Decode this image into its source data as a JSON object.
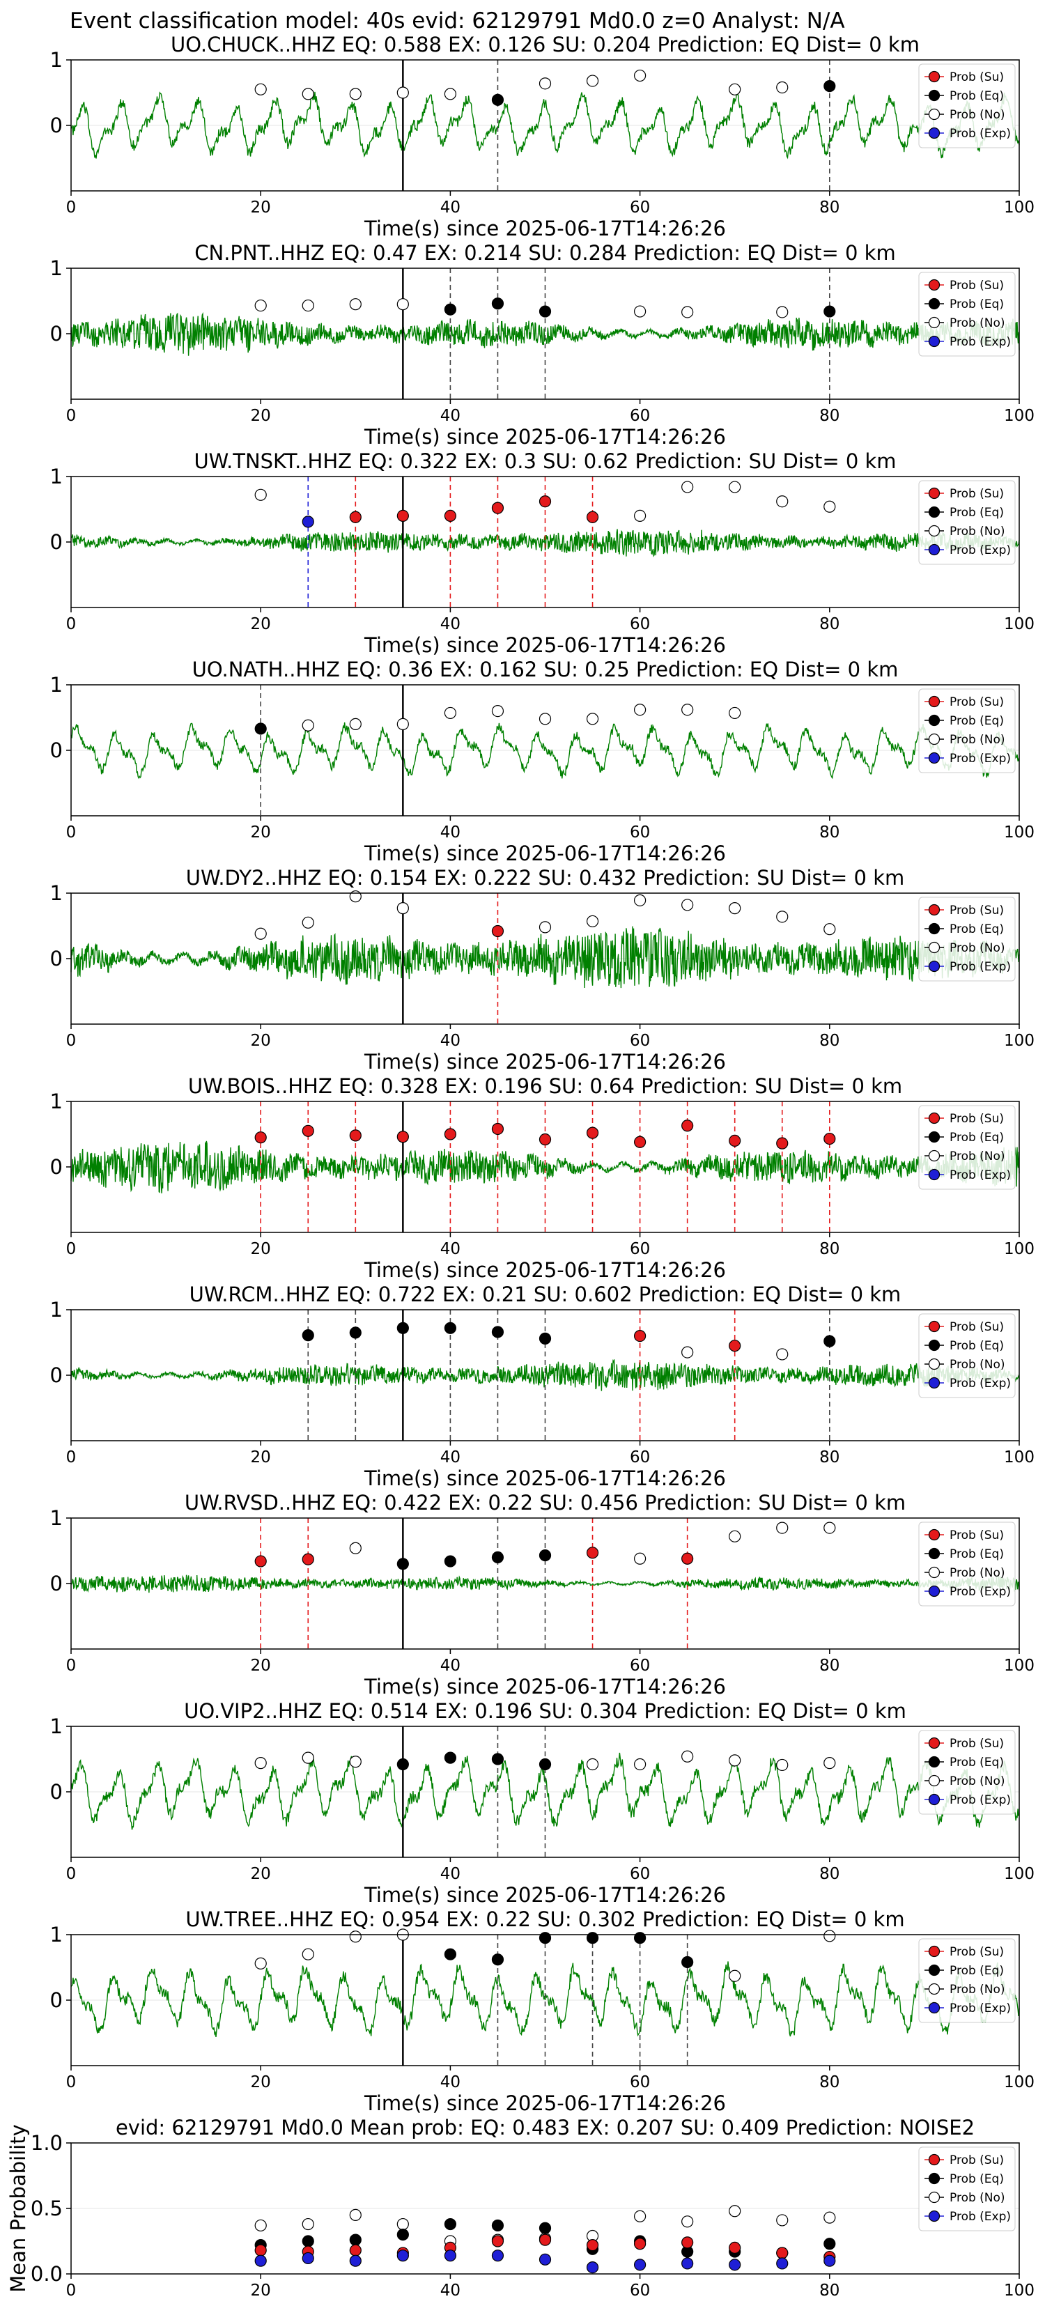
{
  "figure": {
    "main_title": "Event classification model: 40s evid: 62129791 Md0.0 z=0 Analyst: N/A",
    "legend_labels": [
      "Prob (Su)",
      "Prob (Eq)",
      "Prob (No)",
      "Prob (Exp)"
    ],
    "colors": {
      "su": "#e41a1c",
      "eq": "#000000",
      "no": "#ffffff",
      "exp": "#1f1fd6",
      "trace": "#008000"
    }
  },
  "chart_data": [
    {
      "type": "line",
      "station": "UO.CHUCK..HHZ",
      "title": "UO.CHUCK..HHZ   EQ: 0.588  EX: 0.126  SU: 0.204   Prediction: EQ    Dist= 0 km",
      "xlabel": "Time(s) since 2025-06-17T14:26:26",
      "xlim": [
        0,
        100
      ],
      "ylim": [
        -1,
        1
      ],
      "xticks": [
        "0",
        "20",
        "40",
        "60",
        "80",
        "100"
      ],
      "yticks": [
        "0",
        "1"
      ],
      "style": "smooth",
      "amp": 0.48,
      "points": [
        [
          20,
          "no",
          0.55
        ],
        [
          25,
          "no",
          0.48
        ],
        [
          30,
          "no",
          0.48
        ],
        [
          35,
          "no",
          0.5
        ],
        [
          40,
          "no",
          0.48
        ],
        [
          45,
          "eq",
          0.39
        ],
        [
          50,
          "no",
          0.64
        ],
        [
          55,
          "no",
          0.68
        ],
        [
          60,
          "no",
          0.76
        ],
        [
          70,
          "no",
          0.55
        ],
        [
          75,
          "no",
          0.58
        ],
        [
          80,
          "eq",
          0.6
        ]
      ],
      "vlines": [
        [
          45,
          "eq"
        ],
        [
          80,
          "eq"
        ]
      ]
    },
    {
      "type": "line",
      "station": "CN.PNT..HHZ",
      "title": "CN.PNT..HHZ   EQ: 0.47  EX: 0.214  SU: 0.284   Prediction: EQ    Dist= 0 km",
      "xlabel": "Time(s) since 2025-06-17T14:26:26",
      "xlim": [
        0,
        100
      ],
      "ylim": [
        -1,
        1
      ],
      "xticks": [
        "0",
        "20",
        "40",
        "60",
        "80",
        "100"
      ],
      "yticks": [
        "0",
        "1"
      ],
      "style": "noisy",
      "amp": 0.28,
      "points": [
        [
          20,
          "no",
          0.43
        ],
        [
          25,
          "no",
          0.43
        ],
        [
          30,
          "no",
          0.45
        ],
        [
          35,
          "no",
          0.45
        ],
        [
          40,
          "eq",
          0.37
        ],
        [
          45,
          "eq",
          0.46
        ],
        [
          50,
          "eq",
          0.34
        ],
        [
          60,
          "no",
          0.34
        ],
        [
          65,
          "no",
          0.33
        ],
        [
          75,
          "no",
          0.33
        ],
        [
          80,
          "eq",
          0.34
        ]
      ],
      "vlines": [
        [
          40,
          "eq"
        ],
        [
          45,
          "eq"
        ],
        [
          50,
          "eq"
        ],
        [
          80,
          "eq"
        ]
      ]
    },
    {
      "type": "line",
      "station": "UW.TNSKT..HHZ",
      "title": "UW.TNSKT..HHZ   EQ: 0.322  EX: 0.3  SU: 0.62   Prediction: SU    Dist= 0 km",
      "xlabel": "Time(s) since 2025-06-17T14:26:26",
      "xlim": [
        0,
        100
      ],
      "ylim": [
        -1,
        1
      ],
      "xticks": [
        "0",
        "20",
        "40",
        "60",
        "80",
        "100"
      ],
      "yticks": [
        "0",
        "1"
      ],
      "style": "noisy",
      "amp": 0.18,
      "points": [
        [
          20,
          "no",
          0.72
        ],
        [
          25,
          "exp",
          0.31
        ],
        [
          30,
          "su",
          0.38
        ],
        [
          35,
          "su",
          0.4
        ],
        [
          40,
          "su",
          0.4
        ],
        [
          45,
          "su",
          0.52
        ],
        [
          50,
          "su",
          0.62
        ],
        [
          55,
          "su",
          0.38
        ],
        [
          60,
          "no",
          0.4
        ],
        [
          65,
          "no",
          0.84
        ],
        [
          70,
          "no",
          0.84
        ],
        [
          75,
          "no",
          0.62
        ],
        [
          80,
          "no",
          0.54
        ]
      ],
      "vlines": [
        [
          25,
          "exp"
        ],
        [
          30,
          "su"
        ],
        [
          40,
          "su"
        ],
        [
          45,
          "su"
        ],
        [
          50,
          "su"
        ],
        [
          55,
          "su"
        ]
      ]
    },
    {
      "type": "line",
      "station": "UO.NATH..HHZ",
      "title": "UO.NATH..HHZ   EQ: 0.36  EX: 0.162  SU: 0.25   Prediction: EQ    Dist= 0 km",
      "xlabel": "Time(s) since 2025-06-17T14:26:26",
      "xlim": [
        0,
        100
      ],
      "ylim": [
        -1,
        1
      ],
      "xticks": [
        "0",
        "20",
        "40",
        "60",
        "80",
        "100"
      ],
      "yticks": [
        "0",
        "1"
      ],
      "style": "smooth",
      "amp": 0.4,
      "points": [
        [
          20,
          "eq",
          0.33
        ],
        [
          25,
          "no",
          0.38
        ],
        [
          30,
          "no",
          0.4
        ],
        [
          35,
          "no",
          0.4
        ],
        [
          40,
          "no",
          0.57
        ],
        [
          45,
          "no",
          0.6
        ],
        [
          50,
          "no",
          0.48
        ],
        [
          55,
          "no",
          0.48
        ],
        [
          60,
          "no",
          0.62
        ],
        [
          65,
          "no",
          0.62
        ],
        [
          70,
          "no",
          0.57
        ]
      ],
      "vlines": [
        [
          20,
          "eq"
        ]
      ]
    },
    {
      "type": "line",
      "station": "UW.DY2..HHZ",
      "title": "UW.DY2..HHZ   EQ: 0.154  EX: 0.222  SU: 0.432   Prediction: SU    Dist= 0 km",
      "xlabel": "Time(s) since 2025-06-17T14:26:26",
      "xlim": [
        0,
        100
      ],
      "ylim": [
        -1,
        1
      ],
      "xticks": [
        "0",
        "20",
        "40",
        "60",
        "80",
        "100"
      ],
      "yticks": [
        "0",
        "1"
      ],
      "style": "noisy",
      "amp": 0.42,
      "points": [
        [
          20,
          "no",
          0.38
        ],
        [
          25,
          "no",
          0.55
        ],
        [
          30,
          "no",
          0.95
        ],
        [
          35,
          "no",
          0.77
        ],
        [
          45,
          "su",
          0.42
        ],
        [
          50,
          "no",
          0.48
        ],
        [
          55,
          "no",
          0.57
        ],
        [
          60,
          "no",
          0.89
        ],
        [
          65,
          "no",
          0.82
        ],
        [
          70,
          "no",
          0.77
        ],
        [
          75,
          "no",
          0.64
        ],
        [
          80,
          "no",
          0.45
        ]
      ],
      "vlines": [
        [
          45,
          "su"
        ]
      ]
    },
    {
      "type": "line",
      "station": "UW.BOIS..HHZ",
      "title": "UW.BOIS..HHZ   EQ: 0.328  EX: 0.196  SU: 0.64   Prediction: SU    Dist= 0 km",
      "xlabel": "Time(s) since 2025-06-17T14:26:26",
      "xlim": [
        0,
        100
      ],
      "ylim": [
        -1,
        1
      ],
      "xticks": [
        "0",
        "20",
        "40",
        "60",
        "80",
        "100"
      ],
      "yticks": [
        "0",
        "1"
      ],
      "style": "noisy",
      "amp": 0.34,
      "points": [
        [
          20,
          "su",
          0.45
        ],
        [
          25,
          "su",
          0.55
        ],
        [
          30,
          "su",
          0.48
        ],
        [
          35,
          "su",
          0.46
        ],
        [
          40,
          "su",
          0.5
        ],
        [
          45,
          "su",
          0.58
        ],
        [
          50,
          "su",
          0.42
        ],
        [
          55,
          "su",
          0.52
        ],
        [
          60,
          "su",
          0.38
        ],
        [
          65,
          "su",
          0.63
        ],
        [
          70,
          "su",
          0.4
        ],
        [
          75,
          "su",
          0.36
        ],
        [
          80,
          "su",
          0.43
        ]
      ],
      "vlines": [
        [
          20,
          "su"
        ],
        [
          25,
          "su"
        ],
        [
          30,
          "su"
        ],
        [
          40,
          "su"
        ],
        [
          45,
          "su"
        ],
        [
          50,
          "su"
        ],
        [
          55,
          "su"
        ],
        [
          60,
          "su"
        ],
        [
          65,
          "su"
        ],
        [
          70,
          "su"
        ],
        [
          75,
          "su"
        ],
        [
          80,
          "su"
        ]
      ]
    },
    {
      "type": "line",
      "station": "UW.RCM..HHZ",
      "title": "UW.RCM..HHZ   EQ: 0.722  EX: 0.21  SU: 0.602   Prediction: EQ    Dist= 0 km",
      "xlabel": "Time(s) since 2025-06-17T14:26:26",
      "xlim": [
        0,
        100
      ],
      "ylim": [
        -1,
        1
      ],
      "xticks": [
        "0",
        "20",
        "40",
        "60",
        "80",
        "100"
      ],
      "yticks": [
        "0",
        "1"
      ],
      "style": "noisy",
      "amp": 0.2,
      "points": [
        [
          25,
          "eq",
          0.61
        ],
        [
          30,
          "eq",
          0.65
        ],
        [
          35,
          "eq",
          0.72
        ],
        [
          40,
          "eq",
          0.72
        ],
        [
          45,
          "eq",
          0.66
        ],
        [
          50,
          "eq",
          0.56
        ],
        [
          60,
          "su",
          0.6
        ],
        [
          65,
          "no",
          0.35
        ],
        [
          70,
          "su",
          0.45
        ],
        [
          75,
          "no",
          0.32
        ],
        [
          80,
          "eq",
          0.52
        ]
      ],
      "vlines": [
        [
          25,
          "eq"
        ],
        [
          30,
          "eq"
        ],
        [
          40,
          "eq"
        ],
        [
          45,
          "eq"
        ],
        [
          50,
          "eq"
        ],
        [
          60,
          "su"
        ],
        [
          70,
          "su"
        ],
        [
          80,
          "eq"
        ]
      ]
    },
    {
      "type": "line",
      "station": "UW.RVSD..HHZ",
      "title": "UW.RVSD..HHZ   EQ: 0.422  EX: 0.22  SU: 0.456   Prediction: SU    Dist= 0 km",
      "xlabel": "Time(s) since 2025-06-17T14:26:26",
      "xlim": [
        0,
        100
      ],
      "ylim": [
        -1,
        1
      ],
      "xticks": [
        "0",
        "20",
        "40",
        "60",
        "80",
        "100"
      ],
      "yticks": [
        "0",
        "1"
      ],
      "style": "noisy",
      "amp": 0.12,
      "points": [
        [
          20,
          "su",
          0.34
        ],
        [
          25,
          "su",
          0.37
        ],
        [
          30,
          "no",
          0.54
        ],
        [
          35,
          "eq",
          0.3
        ],
        [
          40,
          "eq",
          0.34
        ],
        [
          45,
          "eq",
          0.4
        ],
        [
          50,
          "eq",
          0.43
        ],
        [
          55,
          "su",
          0.47
        ],
        [
          60,
          "no",
          0.38
        ],
        [
          65,
          "su",
          0.38
        ],
        [
          70,
          "no",
          0.72
        ],
        [
          75,
          "no",
          0.85
        ],
        [
          80,
          "no",
          0.85
        ]
      ],
      "vlines": [
        [
          20,
          "su"
        ],
        [
          25,
          "su"
        ],
        [
          45,
          "eq"
        ],
        [
          50,
          "eq"
        ],
        [
          55,
          "su"
        ],
        [
          65,
          "su"
        ]
      ]
    },
    {
      "type": "line",
      "station": "UO.VIP2..HHZ",
      "title": "UO.VIP2..HHZ   EQ: 0.514  EX: 0.196  SU: 0.304   Prediction: EQ    Dist= 0 km",
      "xlabel": "Time(s) since 2025-06-17T14:26:26",
      "xlim": [
        0,
        100
      ],
      "ylim": [
        -1,
        1
      ],
      "xticks": [
        "0",
        "20",
        "40",
        "60",
        "80",
        "100"
      ],
      "yticks": [
        "0",
        "1"
      ],
      "style": "smooth",
      "amp": 0.55,
      "points": [
        [
          20,
          "no",
          0.44
        ],
        [
          25,
          "no",
          0.52
        ],
        [
          30,
          "no",
          0.46
        ],
        [
          35,
          "eq",
          0.42
        ],
        [
          40,
          "eq",
          0.52
        ],
        [
          45,
          "eq",
          0.5
        ],
        [
          50,
          "eq",
          0.42
        ],
        [
          55,
          "no",
          0.42
        ],
        [
          60,
          "no",
          0.42
        ],
        [
          65,
          "no",
          0.54
        ],
        [
          70,
          "no",
          0.48
        ],
        [
          75,
          "no",
          0.41
        ],
        [
          80,
          "no",
          0.44
        ]
      ],
      "vlines": [
        [
          45,
          "eq"
        ],
        [
          50,
          "eq"
        ]
      ]
    },
    {
      "type": "line",
      "station": "UW.TREE..HHZ",
      "title": "UW.TREE..HHZ   EQ: 0.954  EX: 0.22  SU: 0.302   Prediction: EQ    Dist= 0 km",
      "xlabel": "Time(s) since 2025-06-17T14:26:26",
      "xlim": [
        0,
        100
      ],
      "ylim": [
        -1,
        1
      ],
      "xticks": [
        "0",
        "20",
        "40",
        "60",
        "80",
        "100"
      ],
      "yticks": [
        "0",
        "1"
      ],
      "style": "smooth",
      "amp": 0.55,
      "points": [
        [
          20,
          "no",
          0.56
        ],
        [
          25,
          "no",
          0.7
        ],
        [
          30,
          "no",
          0.97
        ],
        [
          35,
          "no",
          1.0
        ],
        [
          40,
          "eq",
          0.7
        ],
        [
          45,
          "eq",
          0.62
        ],
        [
          50,
          "eq",
          0.95
        ],
        [
          55,
          "eq",
          0.95
        ],
        [
          60,
          "eq",
          0.95
        ],
        [
          65,
          "eq",
          0.58
        ],
        [
          70,
          "no",
          0.37
        ],
        [
          80,
          "no",
          0.98
        ]
      ],
      "vlines": [
        [
          45,
          "eq"
        ],
        [
          50,
          "eq"
        ],
        [
          55,
          "eq"
        ],
        [
          60,
          "eq"
        ],
        [
          65,
          "eq"
        ]
      ]
    },
    {
      "type": "scatter",
      "title": "evid: 62129791  Md0.0   Mean prob:   EQ: 0.483  EX: 0.207  SU: 0.409   Prediction: NOISE2",
      "ylabel": "Mean Probability",
      "xlim": [
        0,
        100
      ],
      "ylim": [
        0,
        1
      ],
      "xticks": [
        "0",
        "20",
        "40",
        "60",
        "80",
        "100"
      ],
      "yticks": [
        "0.0",
        "0.5",
        "1.0"
      ],
      "x": [
        20,
        25,
        30,
        35,
        40,
        45,
        50,
        55,
        60,
        65,
        70,
        75,
        80
      ],
      "series": [
        {
          "name": "Prob (No)",
          "key": "no",
          "values": [
            0.37,
            0.38,
            0.45,
            0.38,
            0.25,
            0.26,
            0.27,
            0.29,
            0.44,
            0.4,
            0.48,
            0.41,
            0.43
          ]
        },
        {
          "name": "Prob (Eq)",
          "key": "eq",
          "values": [
            0.22,
            0.25,
            0.26,
            0.3,
            0.38,
            0.37,
            0.35,
            0.19,
            0.25,
            0.17,
            0.17,
            0.16,
            0.23
          ]
        },
        {
          "name": "Prob (Su)",
          "key": "su",
          "values": [
            0.18,
            0.17,
            0.18,
            0.16,
            0.2,
            0.25,
            0.26,
            0.22,
            0.23,
            0.24,
            0.2,
            0.16,
            0.13
          ]
        },
        {
          "name": "Prob (Exp)",
          "key": "exp",
          "values": [
            0.1,
            0.12,
            0.1,
            0.14,
            0.14,
            0.14,
            0.11,
            0.05,
            0.07,
            0.08,
            0.07,
            0.08,
            0.1
          ]
        }
      ]
    }
  ]
}
